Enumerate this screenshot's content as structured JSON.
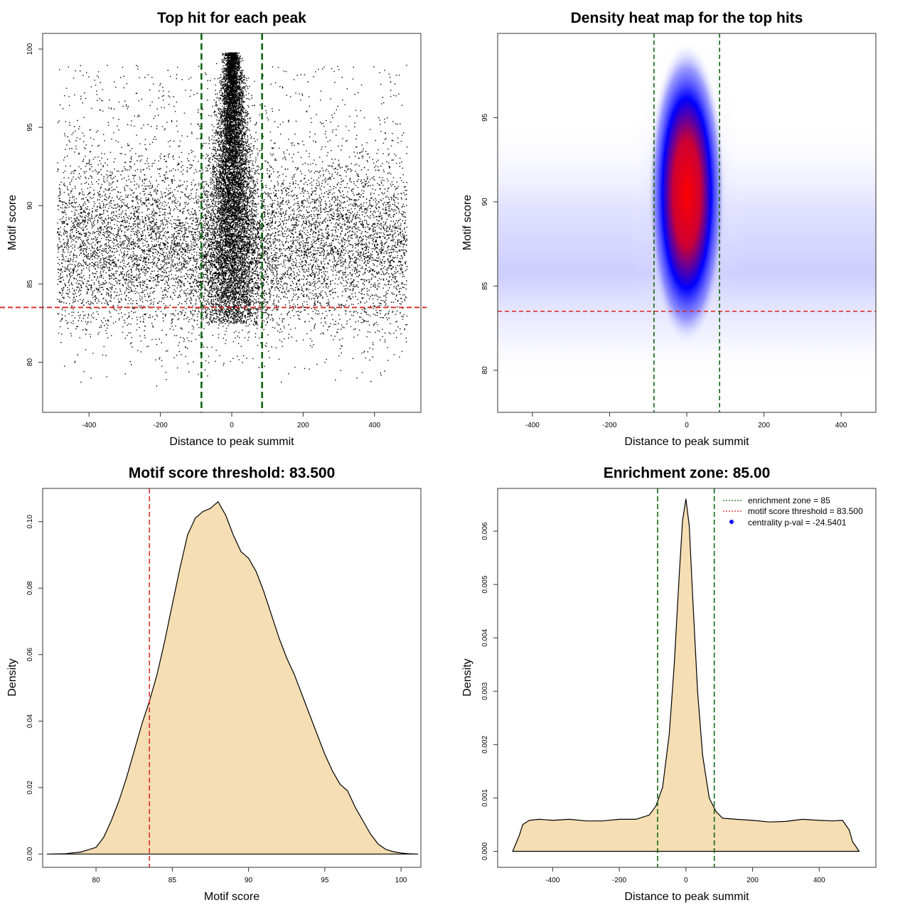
{
  "colors": {
    "threshold": "#dd2222",
    "zone": "#116611",
    "fill": "#f5deb3",
    "point": "#000000",
    "heat_low": "#ffffff",
    "heat_mid": "#0000ff",
    "heat_high": "#ff0000"
  },
  "chart_data": [
    {
      "type": "scatter",
      "title": "Top hit for each peak",
      "xlabel": "Distance to peak summit",
      "ylabel": "Motif score",
      "xlim": [
        -530,
        530
      ],
      "ylim": [
        76.8,
        101
      ],
      "xticks": [
        -400,
        -200,
        0,
        200,
        400
      ],
      "yticks": [
        80,
        85,
        90,
        95,
        100
      ],
      "threshold": 83.5,
      "zone": [
        -85,
        85
      ],
      "background_points": {
        "x_range": [
          -490,
          490
        ],
        "y_mode": 87.5,
        "y_range": [
          78.5,
          99.2
        ]
      },
      "central_points": {
        "x_center": 0,
        "y_range": [
          82.5,
          99.8
        ]
      }
    },
    {
      "type": "heatmap",
      "title": "Density heat map for the top hits",
      "xlabel": "Distance to peak summit",
      "ylabel": "Motif score",
      "xlim": [
        -490,
        490
      ],
      "ylim": [
        77.5,
        100
      ],
      "xticks": [
        -400,
        -200,
        0,
        200,
        400
      ],
      "yticks": [
        80,
        85,
        90,
        95
      ],
      "threshold": 83.5,
      "zone": [
        -85,
        85
      ],
      "hotspot": {
        "x": 0,
        "y": 90.5
      }
    },
    {
      "type": "area",
      "title": "Motif score threshold: 83.500",
      "xlabel": "Motif score",
      "ylabel": "Density",
      "xlim": [
        76.5,
        101.3
      ],
      "ylim": [
        -0.004,
        0.11
      ],
      "xticks": [
        80,
        85,
        90,
        95,
        100
      ],
      "yticks": [
        0.0,
        0.02,
        0.04,
        0.06,
        0.08,
        0.1
      ],
      "ytick_labels": [
        "0.00",
        "0.02",
        "0.04",
        "0.06",
        "0.08",
        "0.10"
      ],
      "threshold": 83.5,
      "x": [
        76.8,
        78,
        79,
        80,
        80.5,
        81,
        81.5,
        82,
        82.5,
        83,
        83.5,
        84,
        84.5,
        85,
        85.5,
        86,
        86.5,
        87,
        87.5,
        88,
        88.5,
        89,
        89.5,
        90,
        90.5,
        91,
        91.5,
        92,
        92.5,
        93,
        93.5,
        94,
        94.5,
        95,
        95.5,
        96,
        96.5,
        97,
        97.5,
        98,
        98.5,
        99,
        99.5,
        100,
        100.5,
        101.1
      ],
      "y": [
        0.0,
        0.0001,
        0.0006,
        0.002,
        0.005,
        0.01,
        0.016,
        0.023,
        0.031,
        0.039,
        0.046,
        0.054,
        0.064,
        0.075,
        0.086,
        0.096,
        0.101,
        0.103,
        0.104,
        0.106,
        0.102,
        0.096,
        0.091,
        0.089,
        0.085,
        0.079,
        0.072,
        0.065,
        0.059,
        0.054,
        0.048,
        0.042,
        0.036,
        0.03,
        0.025,
        0.021,
        0.019,
        0.014,
        0.01,
        0.006,
        0.003,
        0.0014,
        0.0007,
        0.0003,
        0.0001,
        0.0
      ]
    },
    {
      "type": "area",
      "title": "Enrichment zone: 85.00",
      "xlabel": "Distance to peak summit",
      "ylabel": "Density",
      "xlim": [
        -565,
        570
      ],
      "ylim": [
        -0.0003,
        0.0068
      ],
      "xticks": [
        -400,
        -200,
        0,
        200,
        400
      ],
      "yticks": [
        0.0,
        0.001,
        0.002,
        0.003,
        0.004,
        0.005,
        0.006
      ],
      "ytick_labels": [
        "0.000",
        "0.001",
        "0.002",
        "0.003",
        "0.004",
        "0.005",
        "0.006"
      ],
      "zone": [
        -85,
        85
      ],
      "x": [
        -520,
        -500,
        -490,
        -470,
        -440,
        -400,
        -350,
        -300,
        -250,
        -200,
        -150,
        -110,
        -90,
        -70,
        -50,
        -35,
        -20,
        -10,
        0,
        10,
        20,
        35,
        50,
        70,
        90,
        110,
        150,
        200,
        250,
        300,
        350,
        400,
        440,
        470,
        490,
        500,
        520
      ],
      "y": [
        0.0,
        0.0003,
        0.0005,
        0.00058,
        0.0006,
        0.00058,
        0.0006,
        0.00057,
        0.00057,
        0.0006,
        0.0006,
        0.00068,
        0.00085,
        0.0012,
        0.0022,
        0.0035,
        0.0052,
        0.0062,
        0.0066,
        0.0061,
        0.0048,
        0.003,
        0.0018,
        0.001,
        0.00075,
        0.00062,
        0.0006,
        0.00058,
        0.00055,
        0.00056,
        0.0006,
        0.00058,
        0.00057,
        0.00058,
        0.0004,
        0.00018,
        0.0
      ],
      "legend": [
        {
          "label": "enrichment zone = 85",
          "style": "dotted",
          "color": "#116611"
        },
        {
          "label": "motif score threshold = 83.500",
          "style": "dotted",
          "color": "#dd2222"
        },
        {
          "label": "centrality p-val = -24.5401",
          "style": "point",
          "color": "#0000ff"
        }
      ]
    }
  ]
}
